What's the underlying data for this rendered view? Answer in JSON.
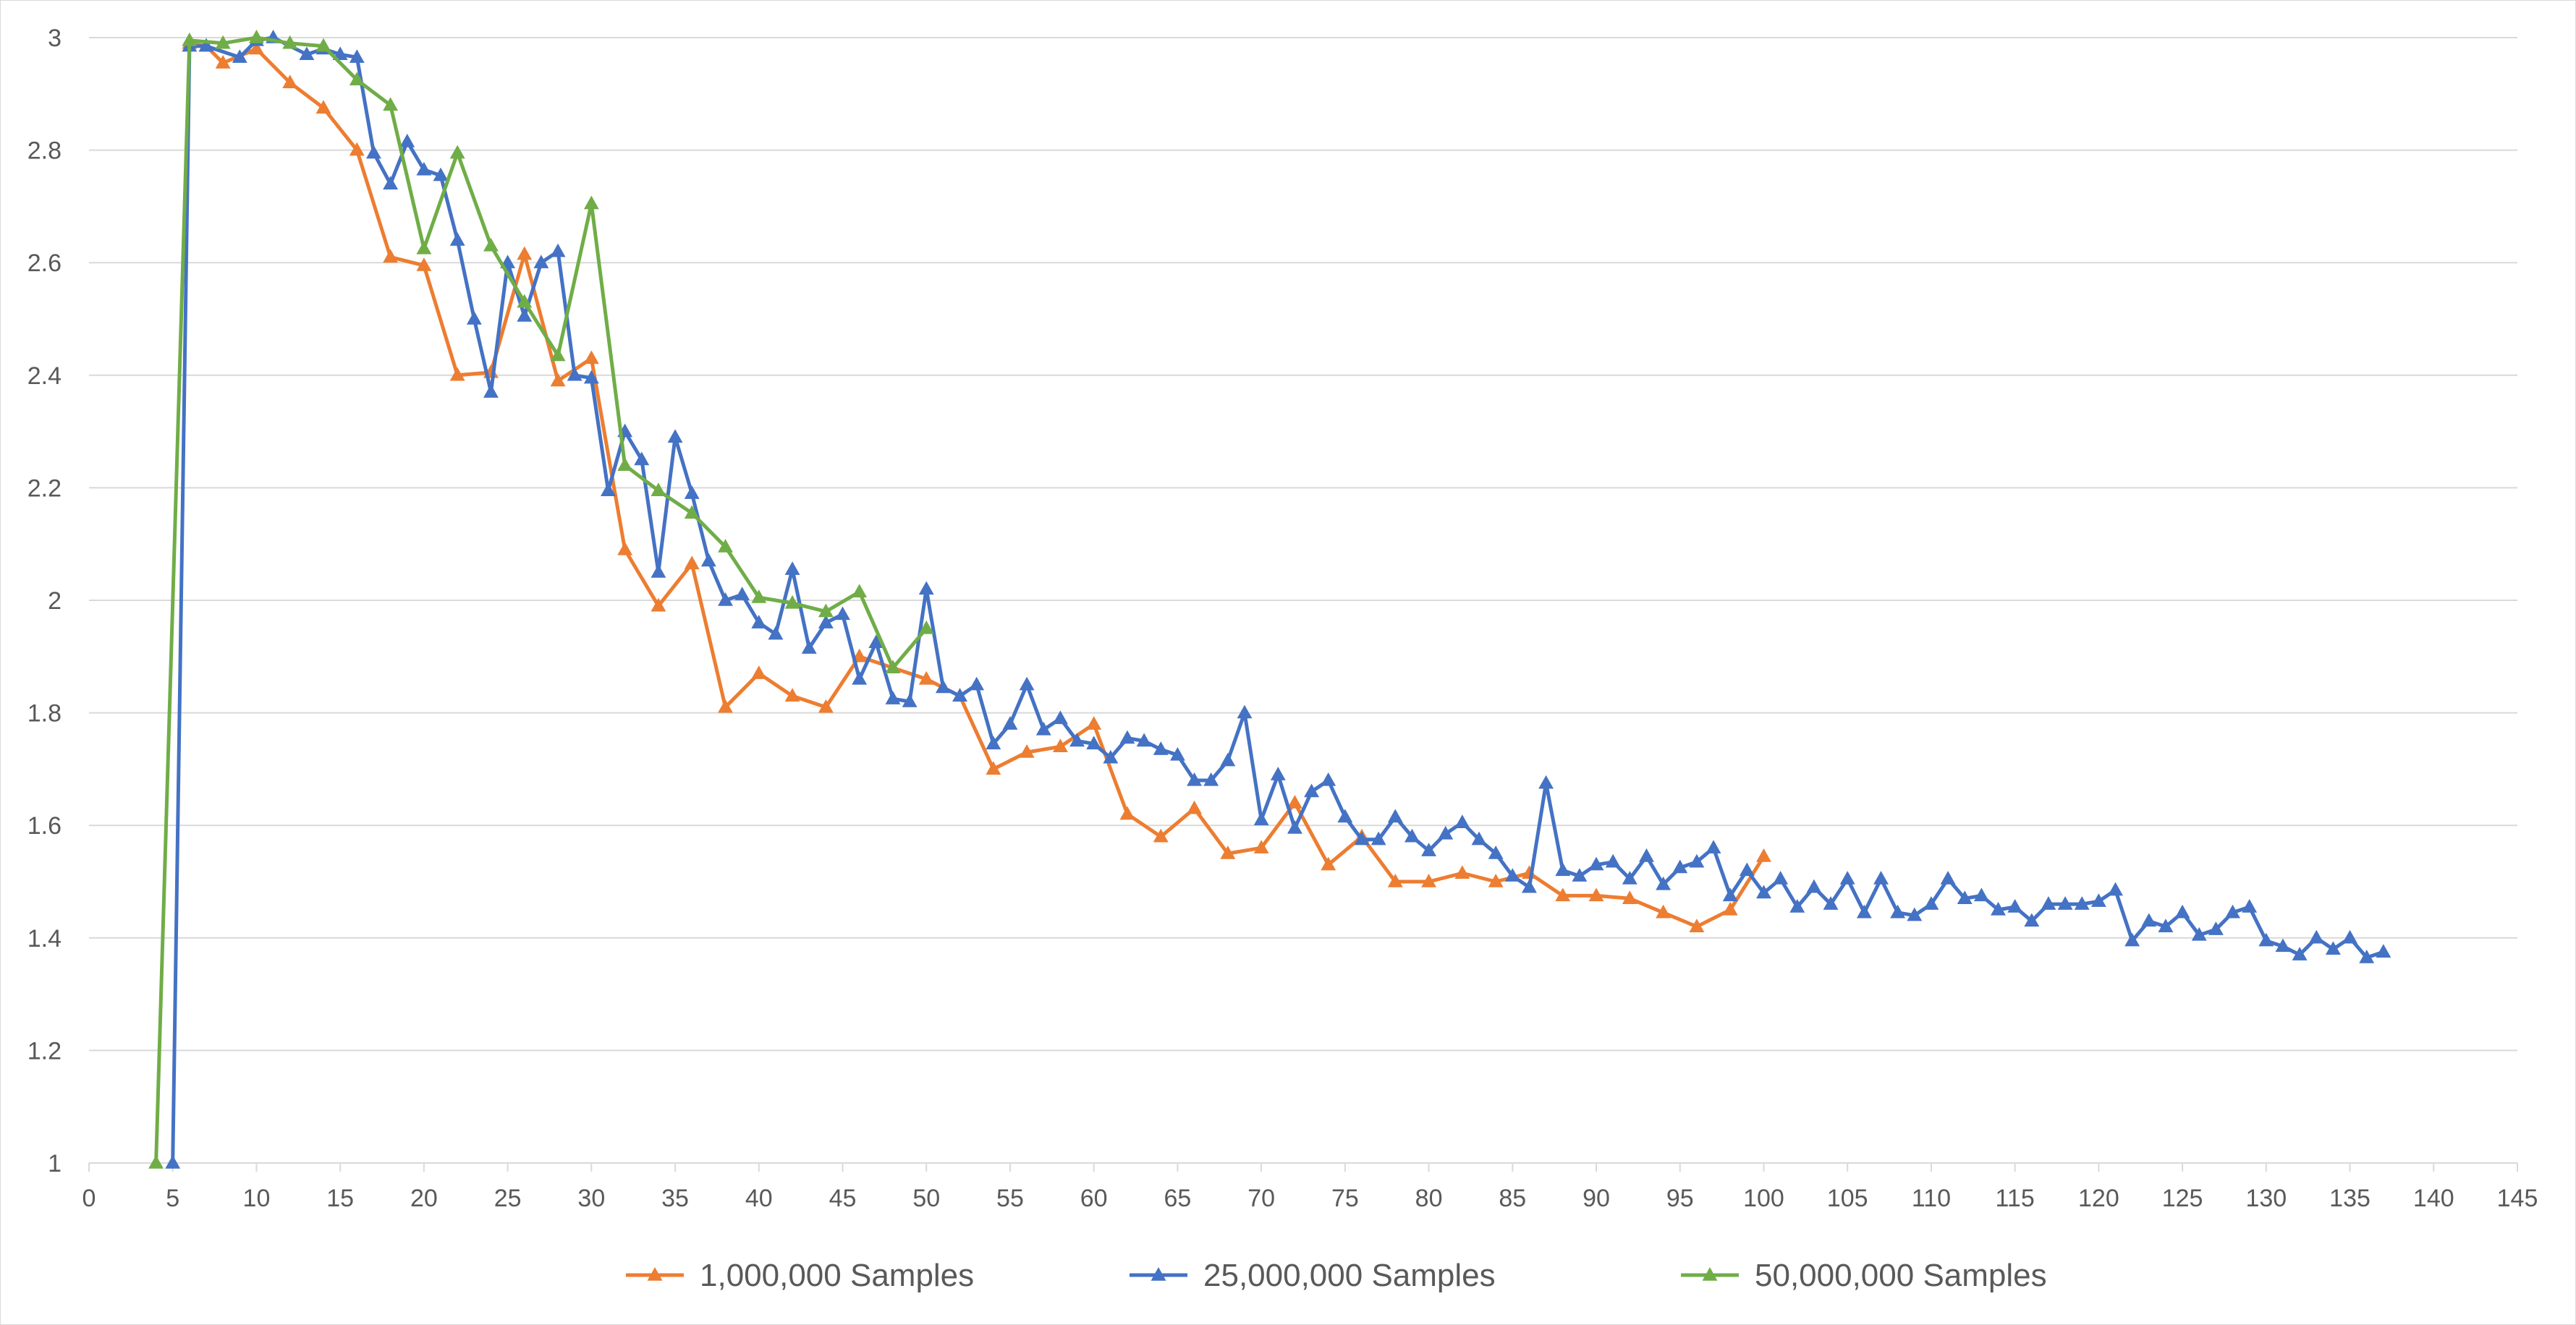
{
  "chart_data": {
    "type": "line",
    "title": "",
    "xlabel": "",
    "ylabel": "",
    "xlim": [
      0,
      145
    ],
    "ylim": [
      1,
      3
    ],
    "x_ticks": [
      "0",
      "5",
      "10",
      "15",
      "20",
      "25",
      "30",
      "35",
      "40",
      "45",
      "50",
      "55",
      "60",
      "65",
      "70",
      "75",
      "80",
      "85",
      "90",
      "95",
      "100",
      "105",
      "110",
      "115",
      "120",
      "125",
      "130",
      "135",
      "140",
      "145"
    ],
    "y_ticks": [
      "1",
      "1.2",
      "1.4",
      "1.6",
      "1.8",
      "2",
      "2.2",
      "2.4",
      "2.6",
      "2.8",
      "3"
    ],
    "grid": "horizontal",
    "legend_position": "bottom",
    "series": [
      {
        "name": "1,000,000 Samples",
        "color": "#ED7D31",
        "points": [
          [
            6,
            2.99
          ],
          [
            7,
            2.985
          ],
          [
            8,
            2.955
          ],
          [
            10,
            2.98
          ],
          [
            12,
            2.92
          ],
          [
            14,
            2.875
          ],
          [
            16,
            2.8
          ],
          [
            18,
            2.61
          ],
          [
            20,
            2.595
          ],
          [
            22,
            2.4
          ],
          [
            24,
            2.405
          ],
          [
            26,
            2.615
          ],
          [
            28,
            2.39
          ],
          [
            30,
            2.43
          ],
          [
            32,
            2.09
          ],
          [
            34,
            1.99
          ],
          [
            36,
            2.065
          ],
          [
            38,
            1.81
          ],
          [
            40,
            1.87
          ],
          [
            42,
            1.83
          ],
          [
            44,
            1.81
          ],
          [
            46,
            1.9
          ],
          [
            48,
            1.88
          ],
          [
            50,
            1.86
          ],
          [
            52,
            1.83
          ],
          [
            54,
            1.7
          ],
          [
            56,
            1.73
          ],
          [
            58,
            1.74
          ],
          [
            60,
            1.78
          ],
          [
            62,
            1.62
          ],
          [
            64,
            1.58
          ],
          [
            66,
            1.63
          ],
          [
            68,
            1.55
          ],
          [
            70,
            1.56
          ],
          [
            72,
            1.64
          ],
          [
            74,
            1.53
          ],
          [
            76,
            1.58
          ],
          [
            78,
            1.5
          ],
          [
            80,
            1.5
          ],
          [
            82,
            1.515
          ],
          [
            84,
            1.5
          ],
          [
            86,
            1.515
          ],
          [
            88,
            1.475
          ],
          [
            90,
            1.475
          ],
          [
            92,
            1.47
          ],
          [
            94,
            1.445
          ],
          [
            96,
            1.42
          ],
          [
            98,
            1.45
          ],
          [
            100,
            1.545
          ]
        ]
      },
      {
        "name": "25,000,000 Samples",
        "color": "#4472C4",
        "points": [
          [
            5,
            1.0
          ],
          [
            6,
            2.985
          ],
          [
            7,
            2.985
          ],
          [
            9,
            2.965
          ],
          [
            10,
            2.995
          ],
          [
            11,
            3.0
          ],
          [
            13,
            2.97
          ],
          [
            14,
            2.98
          ],
          [
            15,
            2.97
          ],
          [
            16,
            2.965
          ],
          [
            17,
            2.795
          ],
          [
            18,
            2.74
          ],
          [
            19,
            2.815
          ],
          [
            20,
            2.765
          ],
          [
            21,
            2.755
          ],
          [
            22,
            2.64
          ],
          [
            23,
            2.5
          ],
          [
            24,
            2.37
          ],
          [
            25,
            2.6
          ],
          [
            26,
            2.505
          ],
          [
            27,
            2.6
          ],
          [
            28,
            2.62
          ],
          [
            29,
            2.4
          ],
          [
            30,
            2.395
          ],
          [
            31,
            2.195
          ],
          [
            32,
            2.3
          ],
          [
            33,
            2.25
          ],
          [
            34,
            2.05
          ],
          [
            35,
            2.29
          ],
          [
            36,
            2.19
          ],
          [
            37,
            2.07
          ],
          [
            38,
            2.0
          ],
          [
            39,
            2.01
          ],
          [
            40,
            1.96
          ],
          [
            41,
            1.94
          ],
          [
            42,
            2.055
          ],
          [
            43,
            1.915
          ],
          [
            44,
            1.96
          ],
          [
            45,
            1.975
          ],
          [
            46,
            1.86
          ],
          [
            47,
            1.925
          ],
          [
            48,
            1.825
          ],
          [
            49,
            1.82
          ],
          [
            50,
            2.02
          ],
          [
            51,
            1.845
          ],
          [
            52,
            1.83
          ],
          [
            53,
            1.85
          ],
          [
            54,
            1.745
          ],
          [
            55,
            1.78
          ],
          [
            56,
            1.85
          ],
          [
            57,
            1.77
          ],
          [
            58,
            1.79
          ],
          [
            59,
            1.75
          ],
          [
            60,
            1.745
          ],
          [
            61,
            1.72
          ],
          [
            62,
            1.755
          ],
          [
            63,
            1.75
          ],
          [
            64,
            1.735
          ],
          [
            65,
            1.725
          ],
          [
            66,
            1.68
          ],
          [
            67,
            1.68
          ],
          [
            68,
            1.715
          ],
          [
            69,
            1.8
          ],
          [
            70,
            1.61
          ],
          [
            71,
            1.69
          ],
          [
            72,
            1.595
          ],
          [
            73,
            1.66
          ],
          [
            74,
            1.68
          ],
          [
            75,
            1.615
          ],
          [
            76,
            1.575
          ],
          [
            77,
            1.575
          ],
          [
            78,
            1.615
          ],
          [
            79,
            1.58
          ],
          [
            80,
            1.555
          ],
          [
            81,
            1.585
          ],
          [
            82,
            1.605
          ],
          [
            83,
            1.575
          ],
          [
            84,
            1.55
          ],
          [
            85,
            1.51
          ],
          [
            86,
            1.49
          ],
          [
            87,
            1.675
          ],
          [
            88,
            1.52
          ],
          [
            89,
            1.51
          ],
          [
            90,
            1.53
          ],
          [
            91,
            1.535
          ],
          [
            92,
            1.505
          ],
          [
            93,
            1.545
          ],
          [
            94,
            1.495
          ],
          [
            95,
            1.525
          ],
          [
            96,
            1.535
          ],
          [
            97,
            1.56
          ],
          [
            98,
            1.475
          ],
          [
            99,
            1.52
          ],
          [
            100,
            1.48
          ],
          [
            101,
            1.505
          ],
          [
            102,
            1.455
          ],
          [
            103,
            1.49
          ],
          [
            104,
            1.46
          ],
          [
            105,
            1.505
          ],
          [
            106,
            1.445
          ],
          [
            107,
            1.505
          ],
          [
            108,
            1.445
          ],
          [
            109,
            1.44
          ],
          [
            110,
            1.46
          ],
          [
            111,
            1.505
          ],
          [
            112,
            1.47
          ],
          [
            113,
            1.475
          ],
          [
            114,
            1.45
          ],
          [
            115,
            1.455
          ],
          [
            116,
            1.43
          ],
          [
            117,
            1.46
          ],
          [
            118,
            1.46
          ],
          [
            119,
            1.46
          ],
          [
            120,
            1.465
          ],
          [
            121,
            1.485
          ],
          [
            122,
            1.395
          ],
          [
            123,
            1.43
          ],
          [
            124,
            1.42
          ],
          [
            125,
            1.445
          ],
          [
            126,
            1.405
          ],
          [
            127,
            1.415
          ],
          [
            128,
            1.445
          ],
          [
            129,
            1.455
          ],
          [
            130,
            1.395
          ],
          [
            131,
            1.385
          ],
          [
            132,
            1.37
          ],
          [
            133,
            1.4
          ],
          [
            134,
            1.38
          ],
          [
            135,
            1.4
          ],
          [
            136,
            1.365
          ],
          [
            137,
            1.375
          ]
        ]
      },
      {
        "name": "50,000,000 Samples",
        "color": "#70AD47",
        "points": [
          [
            4,
            1.0
          ],
          [
            6,
            2.995
          ],
          [
            8,
            2.99
          ],
          [
            10,
            3.0
          ],
          [
            12,
            2.99
          ],
          [
            14,
            2.985
          ],
          [
            16,
            2.925
          ],
          [
            18,
            2.88
          ],
          [
            20,
            2.625
          ],
          [
            22,
            2.795
          ],
          [
            24,
            2.63
          ],
          [
            26,
            2.53
          ],
          [
            28,
            2.435
          ],
          [
            30,
            2.705
          ],
          [
            32,
            2.24
          ],
          [
            34,
            2.195
          ],
          [
            36,
            2.155
          ],
          [
            38,
            2.095
          ],
          [
            40,
            2.005
          ],
          [
            42,
            1.995
          ],
          [
            44,
            1.98
          ],
          [
            46,
            2.015
          ],
          [
            48,
            1.88
          ],
          [
            50,
            1.95
          ]
        ]
      }
    ]
  }
}
